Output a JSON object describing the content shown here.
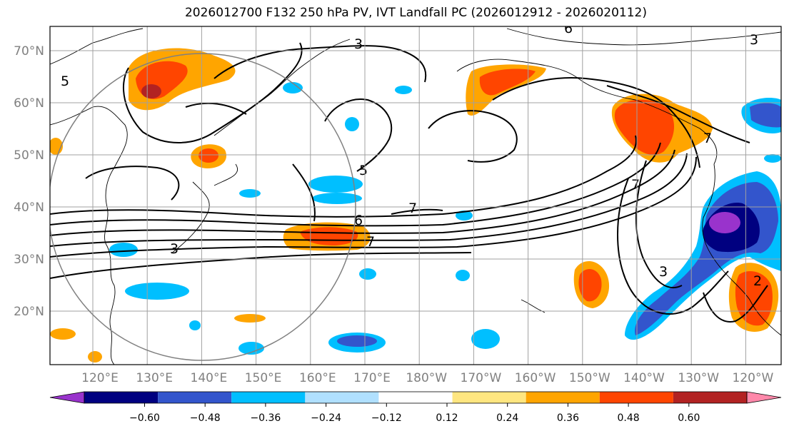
{
  "title": "2026012700 F132 250 hPa PV, IVT Landfall PC (2026012912 - 2026020112)",
  "lat_labels": [
    "70°N",
    "60°N",
    "50°N",
    "40°N",
    "30°N",
    "20°N"
  ],
  "lat_values": [
    70,
    60,
    50,
    40,
    30,
    20
  ],
  "lon_labels": [
    "120°E",
    "130°E",
    "140°E",
    "150°E",
    "160°E",
    "170°E",
    "180°W",
    "170°W",
    "160°W",
    "150°W",
    "140°W",
    "130°W",
    "120°W"
  ],
  "lon_values": [
    120,
    130,
    140,
    150,
    160,
    170,
    180,
    190,
    200,
    210,
    220,
    230,
    240
  ],
  "contour_labels": [
    "3",
    "6",
    "3",
    "5",
    "6",
    "7",
    "7",
    "3",
    "7",
    "5",
    "3",
    "7",
    "2"
  ],
  "colorbar": {
    "colors": [
      "#9933cc",
      "#000080",
      "#3355cc",
      "#00bfff",
      "#b0e0ff",
      "#ffffff",
      "#ffe680",
      "#ffa500",
      "#ff4500",
      "#b22222",
      "#ff88aa"
    ],
    "ticks": [
      "−0.60",
      "−0.48",
      "−0.36",
      "−0.24",
      "−0.12",
      "0.12",
      "0.24",
      "0.36",
      "0.48",
      "0.60"
    ]
  },
  "colors": {
    "grid": "#a0a0a0",
    "axis_label": "#808080",
    "land_line": "#000000"
  }
}
